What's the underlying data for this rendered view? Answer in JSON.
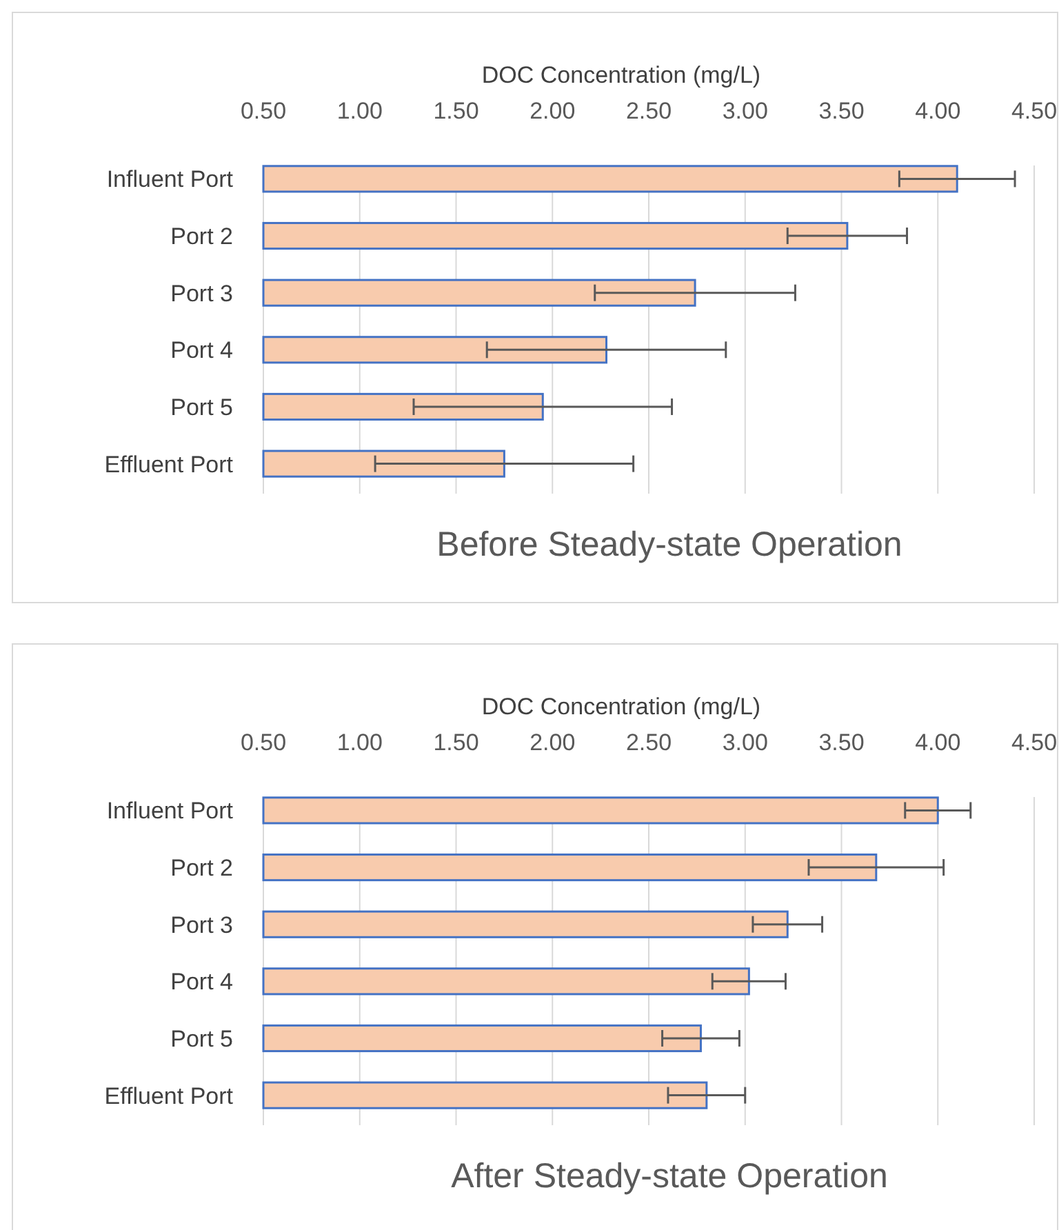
{
  "chart_data": [
    {
      "type": "bar",
      "orientation": "horizontal",
      "title": "Before Steady-state Operation",
      "xlabel": "DOC Concentration (mg/L)",
      "categories": [
        "Influent Port",
        "Port 2",
        "Port 3",
        "Port 4",
        "Port 5",
        "Effluent Port"
      ],
      "values": [
        4.1,
        3.53,
        2.74,
        2.28,
        1.95,
        1.75
      ],
      "errors": [
        0.3,
        0.31,
        0.52,
        0.62,
        0.67,
        0.67
      ],
      "color": "#f8cbad",
      "xlim": [
        0.5,
        4.5
      ],
      "xticks": [
        {
          "value": 0.5,
          "label": "0.50"
        },
        {
          "value": 1,
          "label": "1.00"
        },
        {
          "value": 1.5,
          "label": "1.50"
        },
        {
          "value": 2,
          "label": "2.00"
        },
        {
          "value": 2.5,
          "label": "2.50"
        },
        {
          "value": 3,
          "label": "3.00"
        },
        {
          "value": 3.5,
          "label": "3.50"
        },
        {
          "value": 4,
          "label": "4.00"
        },
        {
          "value": 4.5,
          "label": "4.50"
        }
      ],
      "grid": "x"
    },
    {
      "type": "bar",
      "orientation": "horizontal",
      "title": "After Steady-state Operation",
      "xlabel": "DOC Concentration (mg/L)",
      "categories": [
        "Influent Port",
        "Port 2",
        "Port 3",
        "Port 4",
        "Port 5",
        "Effluent Port"
      ],
      "values": [
        4.0,
        3.68,
        3.22,
        3.02,
        2.77,
        2.8
      ],
      "errors": [
        0.17,
        0.35,
        0.18,
        0.19,
        0.2,
        0.2
      ],
      "color": "#f8cbad",
      "xlim": [
        0.5,
        4.5
      ],
      "xticks": [
        {
          "value": 0.5,
          "label": "0.50"
        },
        {
          "value": 1,
          "label": "1.00"
        },
        {
          "value": 1.5,
          "label": "1.50"
        },
        {
          "value": 2,
          "label": "2.00"
        },
        {
          "value": 2.5,
          "label": "2.50"
        },
        {
          "value": 3,
          "label": "3.00"
        },
        {
          "value": 3.5,
          "label": "3.50"
        },
        {
          "value": 4,
          "label": "4.00"
        },
        {
          "value": 4.5,
          "label": "4.50"
        }
      ],
      "grid": "x"
    }
  ]
}
